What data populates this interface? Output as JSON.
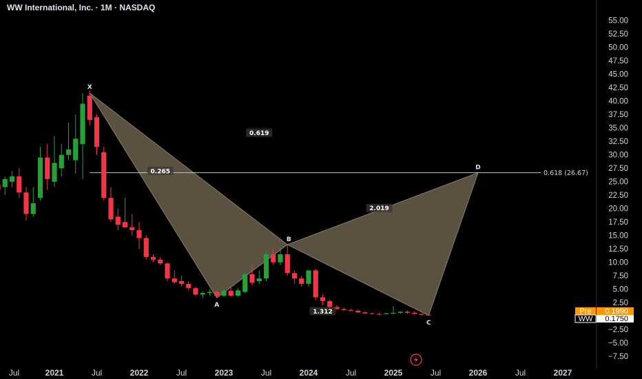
{
  "header": {
    "title": "WW International, Inc. · 1M · NASDAQ"
  },
  "colors": {
    "up": "#26a13a",
    "down": "#f23645",
    "pattern_fill": "#6b5f4c",
    "pattern_stroke": "#8a7e6a",
    "pre_badge": "#ff9800",
    "price_badge": "#ffffff",
    "background": "#000000"
  },
  "chart_data": {
    "type": "candlestick",
    "title": "WW International, Inc. · 1M · NASDAQ",
    "x_ticks": [
      "Jul",
      "2021",
      "Jul",
      "2022",
      "Jul",
      "2023",
      "Jul",
      "2024",
      "Jul",
      "2025",
      "Jul",
      "2026",
      "Jul",
      "2027"
    ],
    "x_tick_positions": [
      "2020-07",
      "2021-01",
      "2021-07",
      "2022-01",
      "2022-07",
      "2023-01",
      "2023-07",
      "2024-01",
      "2024-07",
      "2025-01",
      "2025-07",
      "2026-01",
      "2026-07",
      "2027-01"
    ],
    "y_ticks": [
      "55.00",
      "52.50",
      "50.00",
      "47.50",
      "45.00",
      "42.50",
      "40.00",
      "37.50",
      "35.00",
      "32.50",
      "30.00",
      "27.50",
      "25.00",
      "22.50",
      "20.00",
      "17.50",
      "15.00",
      "12.50",
      "10.00",
      "7.50",
      "5.00",
      "2.50",
      "0.00",
      "−2.50",
      "−5.00",
      "−7.50"
    ],
    "ylim": [
      -8.5,
      56.5
    ],
    "candles": [
      {
        "date": "2020-05",
        "o": 24.5,
        "h": 27.2,
        "l": 21.5,
        "c": 23.5
      },
      {
        "date": "2020-06",
        "o": 24.0,
        "h": 26.0,
        "l": 22.5,
        "c": 25.5
      },
      {
        "date": "2020-07",
        "o": 25.0,
        "h": 27.0,
        "l": 24.0,
        "c": 26.0
      },
      {
        "date": "2020-08",
        "o": 26.0,
        "h": 27.5,
        "l": 22.0,
        "c": 23.0
      },
      {
        "date": "2020-09",
        "o": 23.0,
        "h": 24.0,
        "l": 17.8,
        "c": 19.0
      },
      {
        "date": "2020-10",
        "o": 19.0,
        "h": 24.0,
        "l": 18.5,
        "c": 21.0
      },
      {
        "date": "2020-11",
        "o": 22.0,
        "h": 31.5,
        "l": 21.5,
        "c": 29.5
      },
      {
        "date": "2020-12",
        "o": 29.5,
        "h": 32.0,
        "l": 23.5,
        "c": 25.5
      },
      {
        "date": "2021-01",
        "o": 25.0,
        "h": 33.5,
        "l": 24.0,
        "c": 28.5
      },
      {
        "date": "2021-02",
        "o": 27.5,
        "h": 32.0,
        "l": 26.0,
        "c": 30.0
      },
      {
        "date": "2021-03",
        "o": 30.0,
        "h": 36.0,
        "l": 29.0,
        "c": 31.0
      },
      {
        "date": "2021-04",
        "o": 29.0,
        "h": 37.5,
        "l": 26.5,
        "c": 33.0
      },
      {
        "date": "2021-05",
        "o": 32.0,
        "h": 41.5,
        "l": 25.5,
        "c": 39.5
      },
      {
        "date": "2021-06",
        "o": 41.0,
        "h": 42.0,
        "l": 35.5,
        "c": 36.5
      },
      {
        "date": "2021-07",
        "o": 37.0,
        "h": 37.5,
        "l": 30.0,
        "c": 31.5
      },
      {
        "date": "2021-08",
        "o": 30.5,
        "h": 31.5,
        "l": 21.5,
        "c": 22.0
      },
      {
        "date": "2021-09",
        "o": 22.0,
        "h": 24.0,
        "l": 17.5,
        "c": 18.0
      },
      {
        "date": "2021-10",
        "o": 18.5,
        "h": 20.0,
        "l": 16.0,
        "c": 17.0
      },
      {
        "date": "2021-11",
        "o": 17.5,
        "h": 22.0,
        "l": 16.5,
        "c": 16.5
      },
      {
        "date": "2021-12",
        "o": 16.5,
        "h": 19.0,
        "l": 15.0,
        "c": 16.0
      },
      {
        "date": "2022-01",
        "o": 16.0,
        "h": 17.5,
        "l": 12.5,
        "c": 14.5
      },
      {
        "date": "2022-02",
        "o": 14.5,
        "h": 15.0,
        "l": 10.5,
        "c": 11.0
      },
      {
        "date": "2022-03",
        "o": 11.0,
        "h": 11.5,
        "l": 10.0,
        "c": 10.5
      },
      {
        "date": "2022-04",
        "o": 10.5,
        "h": 11.0,
        "l": 9.5,
        "c": 9.8
      },
      {
        "date": "2022-05",
        "o": 9.8,
        "h": 10.0,
        "l": 6.5,
        "c": 7.0
      },
      {
        "date": "2022-06",
        "o": 7.0,
        "h": 8.5,
        "l": 6.0,
        "c": 6.3
      },
      {
        "date": "2022-07",
        "o": 6.5,
        "h": 7.5,
        "l": 5.5,
        "c": 6.0
      },
      {
        "date": "2022-08",
        "o": 6.0,
        "h": 6.5,
        "l": 4.8,
        "c": 5.2
      },
      {
        "date": "2022-09",
        "o": 5.2,
        "h": 5.5,
        "l": 3.8,
        "c": 4.0
      },
      {
        "date": "2022-10",
        "o": 4.0,
        "h": 4.6,
        "l": 3.3,
        "c": 4.3
      },
      {
        "date": "2022-11",
        "o": 4.3,
        "h": 5.0,
        "l": 3.8,
        "c": 4.5
      },
      {
        "date": "2022-12",
        "o": 4.5,
        "h": 4.7,
        "l": 3.4,
        "c": 3.8
      },
      {
        "date": "2023-01",
        "o": 3.8,
        "h": 5.0,
        "l": 3.5,
        "c": 4.7
      },
      {
        "date": "2023-02",
        "o": 4.7,
        "h": 5.5,
        "l": 3.6,
        "c": 3.8
      },
      {
        "date": "2023-03",
        "o": 3.8,
        "h": 5.2,
        "l": 3.6,
        "c": 4.8
      },
      {
        "date": "2023-04",
        "o": 4.5,
        "h": 8.0,
        "l": 4.2,
        "c": 7.8
      },
      {
        "date": "2023-05",
        "o": 7.8,
        "h": 9.5,
        "l": 5.8,
        "c": 6.2
      },
      {
        "date": "2023-06",
        "o": 6.5,
        "h": 8.5,
        "l": 6.0,
        "c": 7.0
      },
      {
        "date": "2023-07",
        "o": 7.0,
        "h": 12.0,
        "l": 6.5,
        "c": 11.5
      },
      {
        "date": "2023-08",
        "o": 11.5,
        "h": 12.5,
        "l": 9.5,
        "c": 10.0
      },
      {
        "date": "2023-09",
        "o": 10.0,
        "h": 12.5,
        "l": 9.5,
        "c": 11.5
      },
      {
        "date": "2023-10",
        "o": 11.5,
        "h": 13.3,
        "l": 7.5,
        "c": 8.0
      },
      {
        "date": "2023-11",
        "o": 8.0,
        "h": 8.5,
        "l": 6.0,
        "c": 7.0
      },
      {
        "date": "2023-12",
        "o": 7.0,
        "h": 7.5,
        "l": 5.5,
        "c": 6.0
      },
      {
        "date": "2024-01",
        "o": 6.0,
        "h": 8.5,
        "l": 5.5,
        "c": 8.5
      },
      {
        "date": "2024-02",
        "o": 8.5,
        "h": 8.8,
        "l": 3.0,
        "c": 3.5
      },
      {
        "date": "2024-03",
        "o": 3.5,
        "h": 4.0,
        "l": 2.0,
        "c": 2.8
      },
      {
        "date": "2024-04",
        "o": 2.8,
        "h": 3.0,
        "l": 1.5,
        "c": 1.7
      },
      {
        "date": "2024-05",
        "o": 1.7,
        "h": 2.0,
        "l": 1.2,
        "c": 1.3
      },
      {
        "date": "2024-06",
        "o": 1.3,
        "h": 1.6,
        "l": 1.0,
        "c": 1.1
      },
      {
        "date": "2024-07",
        "o": 1.1,
        "h": 1.4,
        "l": 0.9,
        "c": 1.0
      },
      {
        "date": "2024-08",
        "o": 1.0,
        "h": 1.2,
        "l": 0.6,
        "c": 0.7
      },
      {
        "date": "2024-09",
        "o": 0.7,
        "h": 0.9,
        "l": 0.4,
        "c": 0.5
      },
      {
        "date": "2024-10",
        "o": 0.5,
        "h": 0.7,
        "l": 0.3,
        "c": 0.4
      },
      {
        "date": "2024-11",
        "o": 0.4,
        "h": 0.6,
        "l": 0.3,
        "c": 0.35
      },
      {
        "date": "2024-12",
        "o": 0.35,
        "h": 0.6,
        "l": 0.3,
        "c": 0.5
      },
      {
        "date": "2025-01",
        "o": 0.5,
        "h": 1.9,
        "l": 0.3,
        "c": 0.6
      },
      {
        "date": "2025-02",
        "o": 0.6,
        "h": 0.9,
        "l": 0.4,
        "c": 0.8
      },
      {
        "date": "2025-03",
        "o": 0.8,
        "h": 1.0,
        "l": 0.4,
        "c": 0.6
      },
      {
        "date": "2025-04",
        "o": 0.6,
        "h": 0.9,
        "l": 0.3,
        "c": 0.4
      },
      {
        "date": "2025-05",
        "o": 0.4,
        "h": 0.5,
        "l": 0.15,
        "c": 0.25
      },
      {
        "date": "2025-06",
        "o": 0.25,
        "h": 0.3,
        "l": 0.1,
        "c": 0.175
      }
    ],
    "pattern": {
      "points": [
        {
          "label": "X",
          "date": "2021-06",
          "value": 41.5
        },
        {
          "label": "A",
          "date": "2022-12",
          "value": 3.4
        },
        {
          "label": "B",
          "date": "2023-10",
          "value": 13.3
        },
        {
          "label": "C",
          "date": "2025-06",
          "value": 0.1
        },
        {
          "label": "D",
          "date": "2026-01",
          "value": 26.67
        }
      ],
      "ratios": [
        {
          "text": "0.619",
          "anchor_date": "2023-06",
          "anchor_value": 34.0
        },
        {
          "text": "0.265",
          "anchor_date": "2022-04",
          "anchor_value": 26.9
        },
        {
          "text": "2.019",
          "anchor_date": "2024-11",
          "anchor_value": 20.0
        },
        {
          "text": "1.312",
          "anchor_date": "2024-03",
          "anchor_value": 0.8
        }
      ]
    },
    "level": {
      "value": 26.67,
      "label": "0.618 (26.67)",
      "start_date": "2021-06"
    },
    "price_badges": [
      {
        "tag": "Pre",
        "value": "0.1990",
        "style": "pre"
      },
      {
        "tag": "WW",
        "value": "0.1750",
        "style": "last"
      }
    ]
  }
}
